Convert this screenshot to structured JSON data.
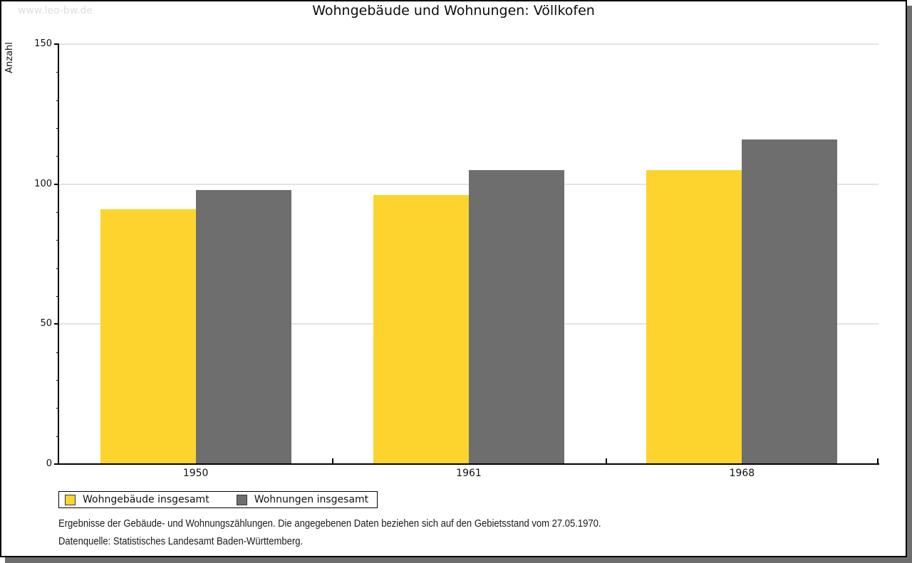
{
  "watermark": "www.leo-bw.de",
  "chart_data": {
    "type": "bar",
    "title": "Wohngebäude und Wohnungen: Völlkofen",
    "ylabel": "Anzahl",
    "xlabel": "",
    "categories": [
      "1950",
      "1961",
      "1968"
    ],
    "series": [
      {
        "name": "Wohngebäude insgesamt",
        "color": "#fcd42d",
        "values": [
          91,
          96,
          105
        ]
      },
      {
        "name": "Wohnungen insgesamt",
        "color": "#6e6e6e",
        "values": [
          98,
          105,
          116
        ]
      }
    ],
    "ylim": [
      0,
      150
    ],
    "yticks": [
      0,
      50,
      100,
      150
    ],
    "minor_tick_step": 10,
    "grid": true,
    "legend_position": "bottom-left"
  },
  "footnotes": [
    "Ergebnisse der Gebäude- und Wohnungszählungen. Die angegebenen Daten beziehen sich auf den Gebietsstand vom 27.05.1970.",
    "Datenquelle: Statistisches Landesamt Baden-Württemberg."
  ],
  "colors": {
    "grid": "#e3e3e3",
    "axis": "#000000",
    "shadow": "#6e6e6e",
    "watermark": "#dedede"
  }
}
